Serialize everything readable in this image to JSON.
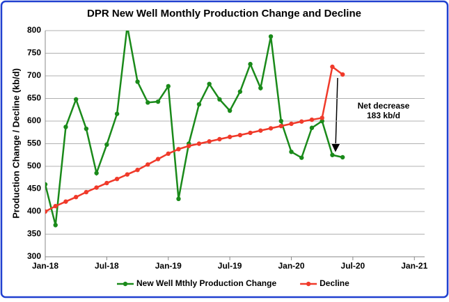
{
  "chart_data": {
    "type": "line",
    "title": "DPR New Well Monthly Production Change and Decline",
    "y_label": "Production Change / Decline (kb/d)",
    "annotation": [
      "Net decrease",
      "183 kb/d"
    ],
    "x": [
      "2018-01",
      "2018-02",
      "2018-03",
      "2018-04",
      "2018-05",
      "2018-06",
      "2018-07",
      "2018-08",
      "2018-09",
      "2018-10",
      "2018-11",
      "2018-12",
      "2019-01",
      "2019-02",
      "2019-03",
      "2019-04",
      "2019-05",
      "2019-06",
      "2019-07",
      "2019-08",
      "2019-09",
      "2019-10",
      "2019-11",
      "2019-12",
      "2020-01",
      "2020-02",
      "2020-03",
      "2020-04",
      "2020-05",
      "2020-06"
    ],
    "series": [
      {
        "name": "New Well Mthly Production Change",
        "color": "#1a8a1a",
        "values": [
          460,
          370,
          587,
          648,
          583,
          485,
          548,
          616,
          810,
          687,
          641,
          643,
          677,
          428,
          550,
          637,
          682,
          648,
          623,
          665,
          726,
          673,
          787,
          600,
          532,
          519,
          585,
          600,
          525,
          520
        ]
      },
      {
        "name": "Decline",
        "color": "#f03a2a",
        "values": [
          400,
          412,
          422,
          432,
          443,
          453,
          463,
          472,
          482,
          492,
          504,
          516,
          528,
          538,
          545,
          550,
          555,
          560,
          565,
          569,
          574,
          579,
          584,
          589,
          594,
          599,
          603,
          607,
          720,
          703
        ]
      }
    ],
    "xlim": [
      "2018-01",
      "2021-02"
    ],
    "xticks": [
      {
        "value": "2018-01",
        "label": "Jan-18"
      },
      {
        "value": "2018-07",
        "label": "Jul-18"
      },
      {
        "value": "2019-01",
        "label": "Jan-19"
      },
      {
        "value": "2019-07",
        "label": "Jul-19"
      },
      {
        "value": "2020-01",
        "label": "Jan-20"
      },
      {
        "value": "2020-07",
        "label": "Jul-20"
      },
      {
        "value": "2021-01",
        "label": "Jan-21"
      }
    ],
    "ylim": [
      300,
      800
    ],
    "yticks": [
      300,
      350,
      400,
      450,
      500,
      550,
      600,
      650,
      700,
      750,
      800
    ],
    "grid": true,
    "legend": "bottom"
  }
}
